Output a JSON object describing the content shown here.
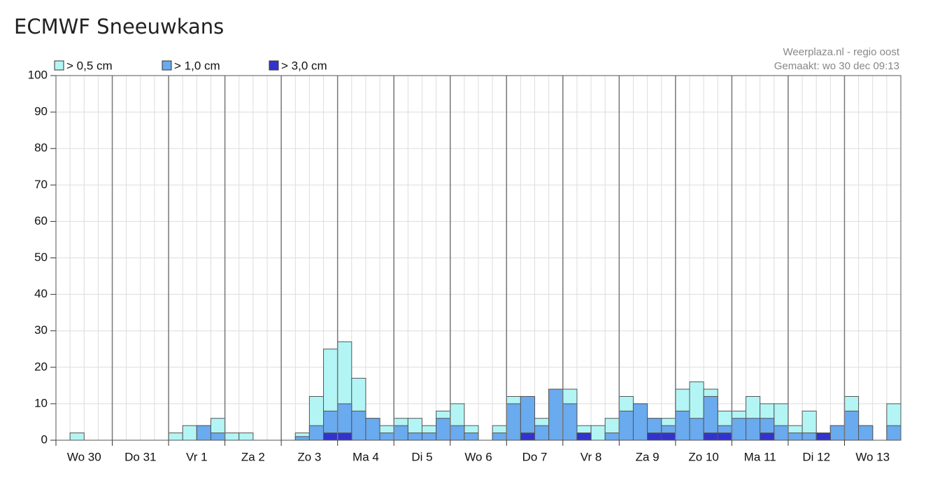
{
  "chart_data": {
    "type": "bar",
    "title": "ECMWF Sneeuwkans",
    "credits": [
      "Weerplaza.nl - regio oost",
      "Gemaakt: wo 30 dec 09:13"
    ],
    "categories": [
      null,
      "Wo 30",
      null,
      null,
      null,
      "Do 31",
      null,
      null,
      null,
      "Vr 1",
      null,
      null,
      null,
      "Za 2",
      null,
      null,
      null,
      "Zo 3",
      null,
      null,
      null,
      "Ma 4",
      null,
      null,
      null,
      "Di 5",
      null,
      null,
      null,
      "Wo 6",
      null,
      null,
      null,
      "Do 7",
      null,
      null,
      null,
      "Vr 8",
      null,
      null,
      null,
      "Za 9",
      null,
      null,
      null,
      "Zo 10",
      null,
      null,
      null,
      "Ma 11",
      null,
      null,
      null,
      "Di 12",
      null,
      null,
      null,
      "Wo 13",
      null,
      null
    ],
    "series": [
      {
        "name": "> 0,5 cm",
        "color": "#b3f5f5",
        "values": [
          0,
          2,
          0,
          0,
          0,
          0,
          0,
          0,
          2,
          4,
          4,
          6,
          2,
          2,
          0,
          0,
          0,
          2,
          12,
          25,
          27,
          17,
          6,
          4,
          6,
          6,
          4,
          8,
          10,
          4,
          0,
          4,
          12,
          12,
          6,
          14,
          14,
          4,
          4,
          6,
          12,
          10,
          6,
          6,
          14,
          16,
          14,
          8,
          8,
          12,
          10,
          10,
          4,
          8,
          2,
          4,
          12,
          4,
          0,
          10
        ]
      },
      {
        "name": "> 1,0 cm",
        "color": "#6aaaee",
        "values": [
          0,
          0,
          0,
          0,
          0,
          0,
          0,
          0,
          0,
          0,
          4,
          2,
          0,
          0,
          0,
          0,
          0,
          1,
          4,
          8,
          10,
          8,
          6,
          2,
          4,
          2,
          2,
          6,
          4,
          2,
          0,
          2,
          10,
          12,
          4,
          14,
          10,
          2,
          0,
          2,
          8,
          10,
          6,
          4,
          8,
          6,
          12,
          4,
          6,
          6,
          6,
          4,
          2,
          2,
          2,
          4,
          8,
          4,
          0,
          4
        ]
      },
      {
        "name": "> 3,0 cm",
        "color": "#3333cc",
        "values": [
          0,
          0,
          0,
          0,
          0,
          0,
          0,
          0,
          0,
          0,
          0,
          0,
          0,
          0,
          0,
          0,
          0,
          0,
          0,
          2,
          2,
          0,
          0,
          0,
          0,
          0,
          0,
          0,
          0,
          0,
          0,
          0,
          0,
          2,
          0,
          0,
          0,
          2,
          0,
          0,
          0,
          0,
          2,
          2,
          0,
          0,
          2,
          2,
          0,
          0,
          2,
          0,
          0,
          0,
          2,
          0,
          0,
          0,
          0,
          0
        ]
      }
    ],
    "ylim": [
      0,
      100
    ],
    "yticks": [
      0,
      10,
      20,
      30,
      40,
      50,
      60,
      70,
      80,
      90,
      100
    ],
    "grid": true,
    "legend": "top-left"
  }
}
